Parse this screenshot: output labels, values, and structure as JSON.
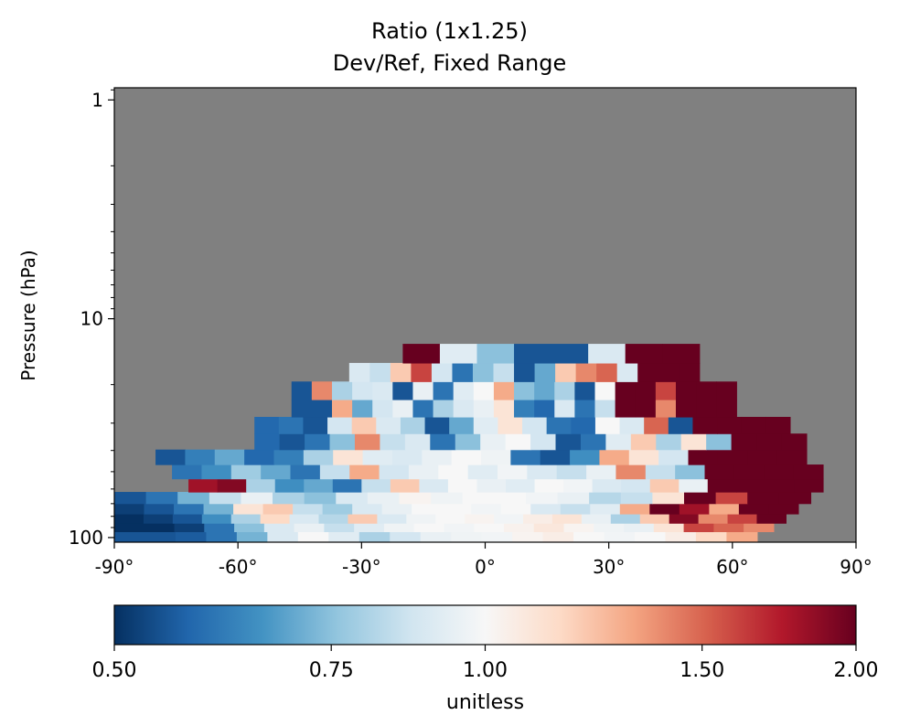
{
  "chart_data": {
    "type": "heatmap",
    "title": "Ratio (1x1.25)",
    "subtitle": "Dev/Ref, Fixed Range",
    "xlabel": "",
    "ylabel": "Pressure (hPa)",
    "xlim": [
      -90,
      90
    ],
    "ylim_hPa": [
      105,
      0.88
    ],
    "y_scale": "log",
    "x_ticks": [
      -90,
      -60,
      -30,
      0,
      30,
      60,
      90
    ],
    "x_tick_labels": [
      "-90°",
      "-60°",
      "-30°",
      "0°",
      "30°",
      "60°",
      "90°"
    ],
    "y_ticks": [
      1,
      10,
      100
    ],
    "y_tick_labels": [
      "1",
      "10",
      "100"
    ],
    "missing_color": "#808080",
    "colormap": "RdBu_r",
    "colorbar": {
      "label": "unitless",
      "range": [
        0.5,
        2.0
      ],
      "scale": "log",
      "ticks": [
        0.5,
        0.75,
        1.0,
        1.5,
        2.0
      ],
      "tick_labels": [
        "0.50",
        "0.75",
        "1.00",
        "1.50",
        "2.00"
      ],
      "stops": [
        "#053061",
        "#2166ac",
        "#4393c3",
        "#92c5de",
        "#d1e5f0",
        "#f7f7f7",
        "#fddbc7",
        "#f4a582",
        "#d6604d",
        "#b2182b",
        "#67001f"
      ],
      "orientation": "horizontal",
      "placement": "bottom"
    },
    "pressure_levels_hPa": [
      98,
      90,
      82,
      74,
      66,
      58,
      50,
      43,
      36.5,
      30.7,
      25.7,
      21.3,
      17.6,
      14.4
    ],
    "lat_bins_deg": 180,
    "rows": [
      {
        "level_hPa": 98,
        "lat_start": -90,
        "lat_end": 66,
        "values": [
          0.55,
          0.55,
          0.56,
          0.6,
          0.72,
          0.9,
          1.0,
          0.92,
          0.8,
          0.88,
          0.95,
          0.97,
          0.98,
          1.02,
          1.05,
          1.0,
          0.98,
          1.0,
          1.05,
          1.15,
          1.3
        ]
      },
      {
        "level_hPa": 90,
        "lat_start": -90,
        "lat_end": 70,
        "values": [
          0.5,
          0.5,
          0.52,
          0.6,
          0.75,
          0.9,
          0.95,
          0.85,
          0.92,
          0.97,
          1.0,
          0.98,
          1.0,
          1.03,
          1.08,
          1.02,
          0.97,
          0.95,
          1.1,
          1.6,
          1.5,
          1.4
        ]
      },
      {
        "level_hPa": 82,
        "lat_start": -90,
        "lat_end": 73,
        "values": [
          0.5,
          0.52,
          0.55,
          0.65,
          0.8,
          1.15,
          0.9,
          0.82,
          1.2,
          0.9,
          0.97,
          1.0,
          1.02,
          0.98,
          1.05,
          1.1,
          0.95,
          0.8,
          1.2,
          1.9,
          1.4,
          1.6,
          2.0
        ]
      },
      {
        "level_hPa": 74,
        "lat_start": -90,
        "lat_end": 76,
        "values": [
          0.52,
          0.55,
          0.6,
          0.72,
          1.1,
          1.2,
          0.85,
          0.78,
          0.9,
          0.95,
          1.0,
          1.0,
          0.98,
          1.0,
          0.9,
          0.85,
          0.92,
          1.3,
          2.0,
          1.8,
          1.3,
          2.0,
          2.0
        ]
      },
      {
        "level_hPa": 66,
        "lat_start": -90,
        "lat_end": 79,
        "values": [
          0.55,
          0.6,
          0.72,
          0.85,
          0.95,
          0.8,
          0.75,
          0.9,
          0.95,
          1.02,
          0.97,
          1.0,
          1.0,
          0.98,
          0.95,
          0.82,
          0.85,
          1.1,
          2.0,
          1.6,
          2.0,
          2.0
        ]
      },
      {
        "level_hPa": 58,
        "lat_start": -72,
        "lat_end": 82,
        "values": [
          1.8,
          1.9,
          0.8,
          0.65,
          0.7,
          0.6,
          0.85,
          1.2,
          0.9,
          1.0,
          0.95,
          0.92,
          1.0,
          0.98,
          0.9,
          0.88,
          1.2,
          0.95,
          2.0,
          2.0,
          2.0,
          2.0
        ]
      },
      {
        "level_hPa": 50,
        "lat_start": -76,
        "lat_end": 82,
        "values": [
          0.6,
          0.65,
          0.78,
          0.7,
          0.6,
          0.85,
          1.3,
          0.88,
          0.95,
          1.0,
          0.92,
          0.98,
          0.9,
          0.85,
          0.95,
          1.4,
          0.85,
          0.75,
          2.0,
          2.0,
          2.0,
          2.0
        ]
      },
      {
        "level_hPa": 43,
        "lat_start": -80,
        "lat_end": 78,
        "values": [
          0.55,
          0.62,
          0.7,
          0.58,
          0.62,
          0.8,
          1.1,
          0.92,
          0.9,
          0.95,
          1.0,
          0.97,
          0.6,
          0.55,
          0.65,
          1.3,
          1.1,
          0.88,
          2.0,
          2.0,
          2.0,
          2.0
        ]
      },
      {
        "level_hPa": 36.5,
        "lat_start": -56,
        "lat_end": 78,
        "values": [
          0.58,
          0.55,
          0.6,
          0.75,
          1.4,
          0.85,
          0.9,
          0.6,
          0.75,
          0.95,
          1.0,
          0.88,
          0.55,
          0.6,
          0.92,
          1.2,
          0.8,
          1.1,
          0.75,
          2.0,
          2.0,
          2.0
        ]
      },
      {
        "level_hPa": 30.7,
        "lat_start": -56,
        "lat_end": 74,
        "values": [
          0.58,
          0.6,
          0.55,
          0.88,
          1.2,
          0.9,
          0.8,
          0.55,
          0.7,
          0.92,
          1.1,
          0.88,
          0.6,
          0.58,
          1.0,
          0.9,
          1.5,
          0.55,
          2.0,
          2.0,
          2.0,
          2.0
        ]
      },
      {
        "level_hPa": 25.7,
        "lat_start": -47,
        "lat_end": 61,
        "values": [
          0.55,
          0.55,
          1.3,
          0.7,
          0.88,
          0.95,
          0.6,
          0.8,
          0.9,
          0.95,
          1.1,
          0.62,
          0.58,
          0.9,
          0.6,
          0.85,
          2.0,
          2.0,
          1.4,
          2.0,
          2.0,
          2.0
        ]
      },
      {
        "level_hPa": 21.3,
        "lat_start": -47,
        "lat_end": 61,
        "values": [
          0.55,
          1.4,
          0.8,
          0.88,
          0.9,
          0.55,
          0.95,
          0.6,
          0.92,
          1.0,
          1.3,
          0.75,
          0.7,
          0.8,
          0.55,
          1.0,
          2.0,
          2.0,
          1.6,
          2.0,
          2.0,
          2.0
        ]
      },
      {
        "level_hPa": 17.6,
        "lat_start": -33,
        "lat_end": 52,
        "values": [
          0.9,
          0.85,
          1.2,
          1.6,
          0.88,
          0.6,
          0.75,
          0.85,
          0.55,
          0.7,
          1.2,
          1.4,
          1.5,
          0.9,
          2.0,
          2.0,
          2.0
        ]
      },
      {
        "level_hPa": 14.4,
        "lat_start": -20,
        "lat_end": 52,
        "values": [
          2.0,
          0.92,
          0.75,
          0.55,
          0.55,
          0.9,
          2.0,
          2.0
        ]
      }
    ]
  }
}
